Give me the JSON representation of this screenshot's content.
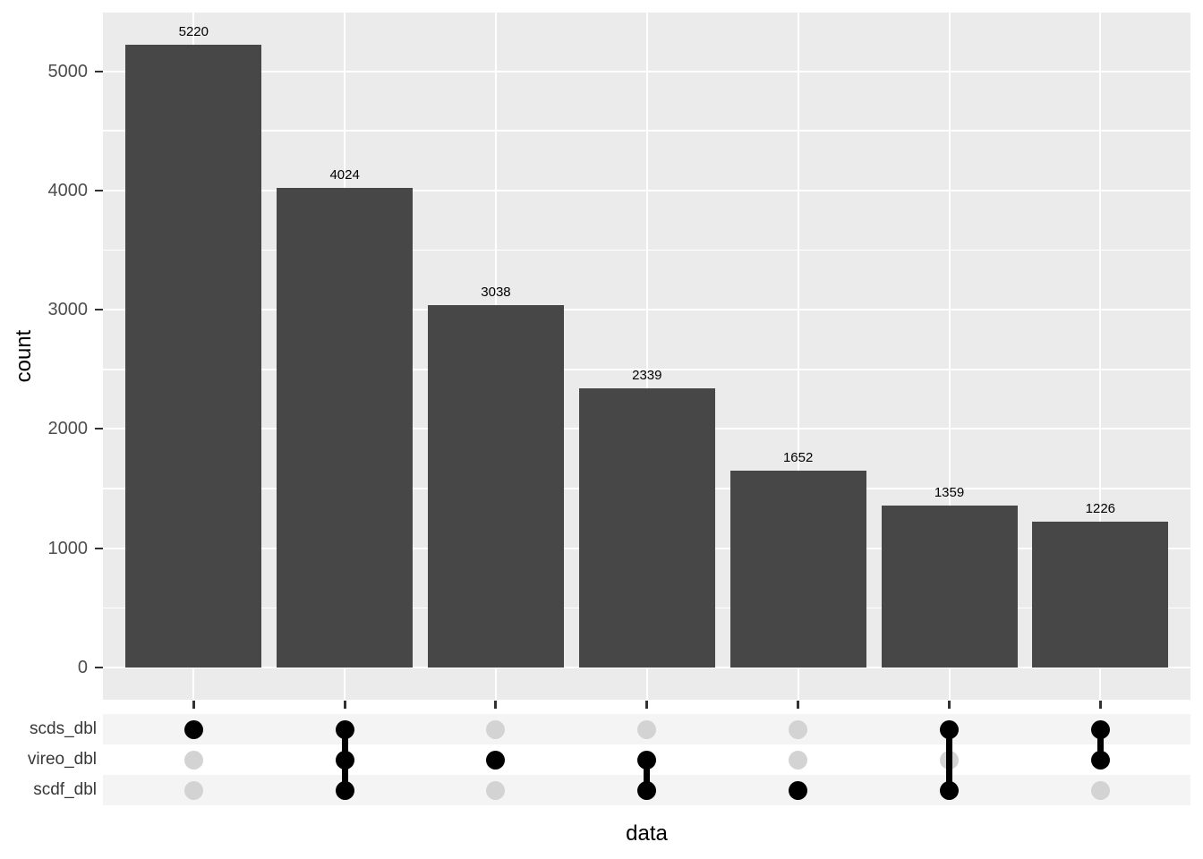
{
  "chart_data": {
    "type": "bar",
    "variant": "upset-intersection-plot",
    "title": "",
    "xlabel": "data",
    "ylabel": "count",
    "legend": "none",
    "grid": "white major+minor horizontal, white major vertical on grey panel",
    "sets": [
      "scds_dbl",
      "vireo_dbl",
      "scdf_dbl"
    ],
    "combos": [
      {
        "member_sets": [
          "scds_dbl"
        ],
        "count": 5220
      },
      {
        "member_sets": [
          "scds_dbl",
          "vireo_dbl",
          "scdf_dbl"
        ],
        "count": 4024
      },
      {
        "member_sets": [
          "vireo_dbl"
        ],
        "count": 3038
      },
      {
        "member_sets": [
          "vireo_dbl",
          "scdf_dbl"
        ],
        "count": 2339
      },
      {
        "member_sets": [
          "scdf_dbl"
        ],
        "count": 1652
      },
      {
        "member_sets": [
          "scds_dbl",
          "scdf_dbl"
        ],
        "count": 1359
      },
      {
        "member_sets": [
          "scds_dbl",
          "vireo_dbl"
        ],
        "count": 1226
      }
    ],
    "values": [
      5220,
      4024,
      3038,
      2339,
      1652,
      1359,
      1226
    ],
    "bar_value_labels": [
      "5220",
      "4024",
      "3038",
      "2339",
      "1652",
      "1359",
      "1226"
    ],
    "y_ticks": [
      "0",
      "1000",
      "2000",
      "3000",
      "4000",
      "5000"
    ],
    "y_tick_values": [
      0,
      1000,
      2000,
      3000,
      4000,
      5000
    ],
    "y_minor_tick_values": [
      500,
      1500,
      2500,
      3500,
      4500
    ],
    "ylim": [
      0,
      5490
    ]
  },
  "colors": {
    "bar": "#474747",
    "panel_bg": "#EBEBEB",
    "gridline": "#FFFFFF",
    "dot_member": "#000000",
    "dot_non_member": "#D3D3D3",
    "matrix_stripe": "#F4F4F4",
    "matrix_row_alt": "#FFFFFF",
    "axis_tick_text": "#4D4D4D",
    "tick_mark": "#333333",
    "label_text": "#000000"
  }
}
